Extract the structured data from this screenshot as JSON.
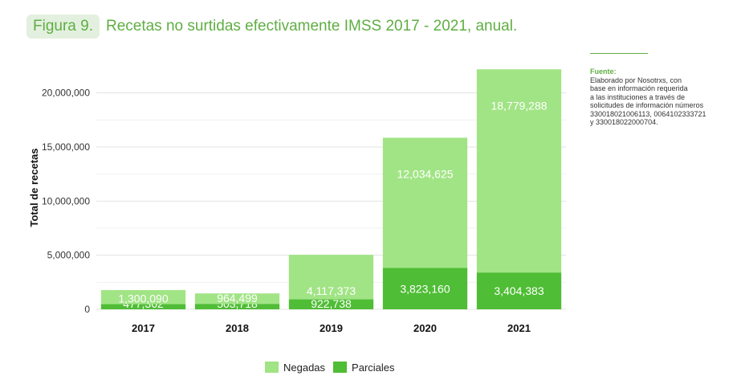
{
  "header": {
    "figure_label": "Figura 9.",
    "title": "Recetas no surtidas efectivamente IMSS 2017 - 2021, anual."
  },
  "source": {
    "title": "Fuente:",
    "body": "Elaborado por Nosotrxs, con\nbase en información requerida\na las instituciones a través de\nsolicitudes de información números\n330018021006113, 0064102333721\ny 330018022000704."
  },
  "colors": {
    "accent": "#5fae43",
    "negadas": "#a1e485",
    "parciales": "#4fbd35"
  },
  "chart_data": {
    "type": "bar",
    "stacked": true,
    "categories": [
      "2017",
      "2018",
      "2019",
      "2020",
      "2021"
    ],
    "series": [
      {
        "name": "Parciales",
        "values": [
          477362,
          503718,
          922738,
          3823160,
          3404383
        ],
        "labels": [
          "477,362",
          "503,718",
          "922,738",
          "3,823,160",
          "3,404,383"
        ]
      },
      {
        "name": "Negadas",
        "values": [
          1300090,
          964499,
          4117373,
          12034625,
          18779288
        ],
        "labels": [
          "1,300,090",
          "964,499",
          "4,117,373",
          "12,034,625",
          "18,779,288"
        ]
      }
    ],
    "ylabel": "Total de recetas",
    "ylim": [
      0,
      22500000
    ],
    "yticks": [
      0,
      5000000,
      10000000,
      15000000,
      20000000
    ],
    "ytick_labels": [
      "0",
      "5,000,000",
      "10,000,000",
      "15,000,000",
      "20,000,000"
    ],
    "grid": true,
    "legend_position": "bottom"
  }
}
